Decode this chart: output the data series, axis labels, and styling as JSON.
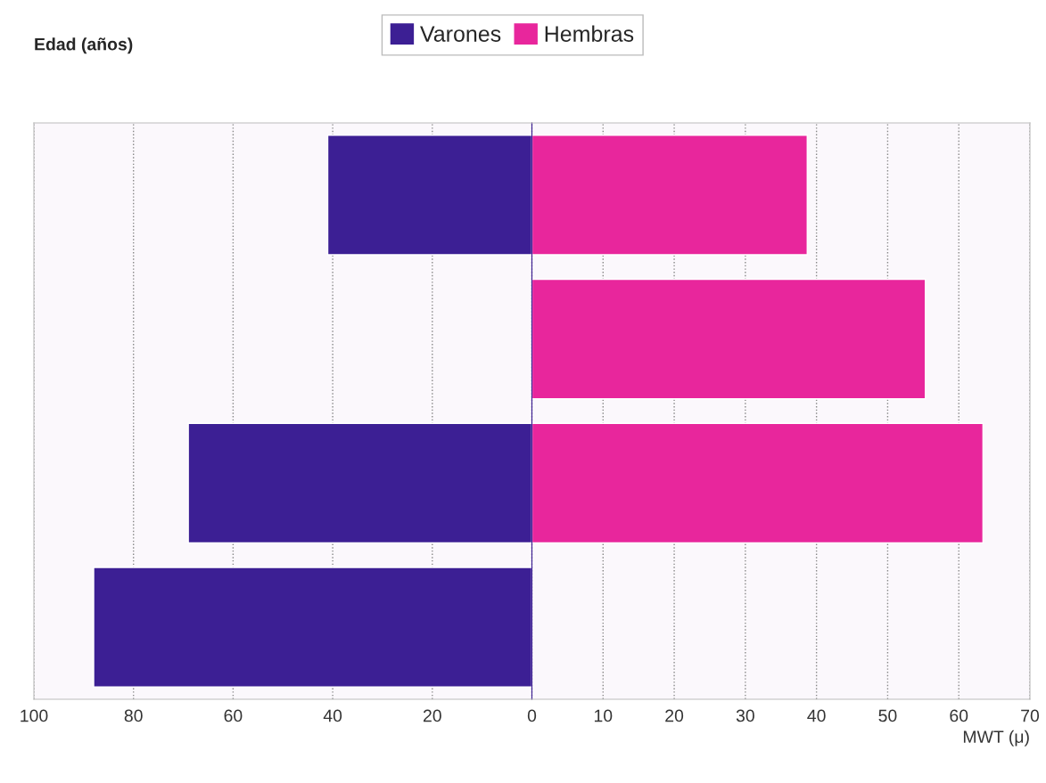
{
  "chart_data": [
    {
      "type": "bar",
      "orientation": "horizontal",
      "ylabel": "Edad (años)",
      "categories": [
        null,
        null,
        null,
        null
      ],
      "series": [
        {
          "name": "Varones",
          "color": "#3c1f94",
          "values": [
            41,
            null,
            69,
            88
          ]
        }
      ],
      "xlim": [
        100,
        0
      ],
      "xticks": [
        100,
        80,
        60,
        40,
        20,
        {
          "value": 0,
          "label": null
        }
      ],
      "grid": "x",
      "legend": "top"
    },
    {
      "type": "bar",
      "orientation": "horizontal",
      "xlabel": "MWT (μ)",
      "categories": [
        null,
        null,
        null,
        null
      ],
      "series": [
        {
          "name": "Hembras",
          "color": "#e8269c",
          "values": [
            38.7,
            55.3,
            63.4,
            null
          ]
        }
      ],
      "xlim": [
        0,
        70
      ],
      "xticks": [
        0,
        10,
        20,
        30,
        40,
        50,
        60,
        70
      ],
      "grid": "x",
      "legend": "top"
    }
  ]
}
